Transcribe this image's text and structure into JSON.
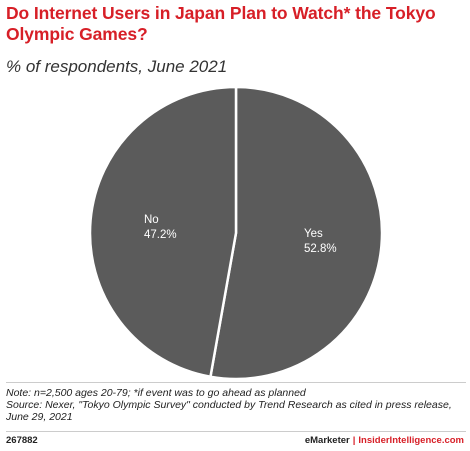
{
  "header": {
    "title": "Do Internet Users in Japan Plan to Watch* the Tokyo Olympic Games?",
    "subtitle": "% of respondents, June 2021"
  },
  "chart_data": {
    "type": "pie",
    "title": "Do Internet Users in Japan Plan to Watch* the Tokyo Olympic Games?",
    "subtitle": "% of respondents, June 2021",
    "slices": [
      {
        "name": "Yes",
        "value": 52.8,
        "value_label": "52.8%"
      },
      {
        "name": "No",
        "value": 47.2,
        "value_label": "47.2%"
      }
    ],
    "colors": {
      "slice_fill": "#5b5b5b",
      "slice_border": "#ffffff"
    },
    "legend": "none"
  },
  "footer": {
    "note": "Note: n=2,500 ages 20-79; *if event was to go ahead as planned",
    "source": "Source: Nexer, \"Tokyo Olympic Survey\" conducted by Trend Research as cited in press release, June 29, 2021",
    "chart_id": "267882",
    "brand_primary": "eMarketer",
    "separator": "|",
    "brand_secondary": "InsiderIntelligence.com"
  },
  "colors": {
    "accent": "#d71f27",
    "text": "#222222"
  }
}
